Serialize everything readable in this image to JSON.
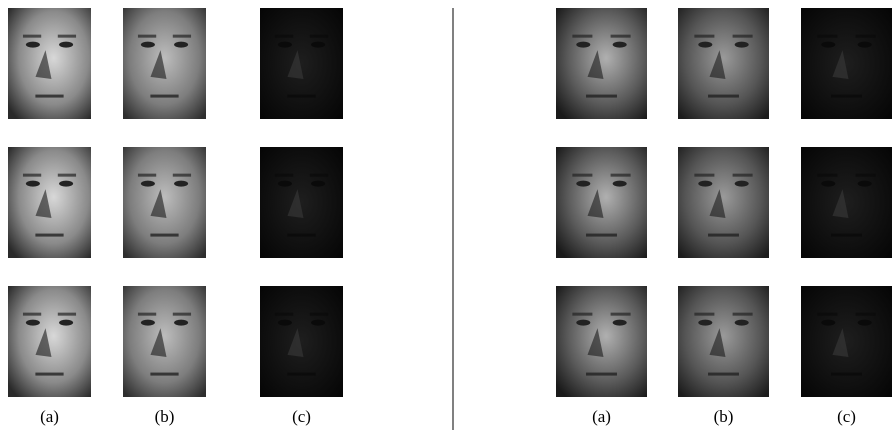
{
  "panels": [
    {
      "labels": [
        "(a)",
        "(b)",
        "(c)"
      ]
    },
    {
      "labels": [
        "(a)",
        "(b)",
        "(c)"
      ]
    }
  ]
}
